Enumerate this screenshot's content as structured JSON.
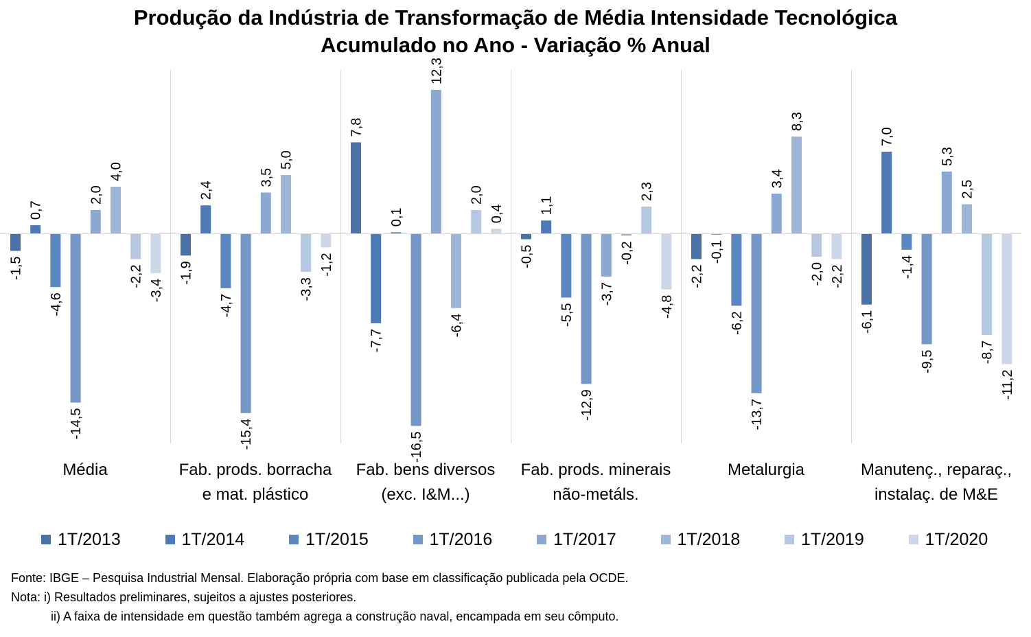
{
  "chart_data": {
    "type": "bar",
    "title": "Produção da Indústria de Transformação de Média Intensidade Tecnológica",
    "subtitle": "Acumulado no Ano - Variação % Anual",
    "categories": [
      "Média",
      "Fab. prods. borracha e mat. plástico",
      "Fab. bens diversos (exc. I&M...)",
      "Fab. prods. minerais não-metáls.",
      "Metalurgia",
      "Manutenç., reparaç., instalaç. de M&E"
    ],
    "category_lines": [
      [
        "Média"
      ],
      [
        "Fab. prods. borracha",
        "e mat. plástico"
      ],
      [
        "Fab. bens diversos",
        "(exc. I&M...)"
      ],
      [
        "Fab. prods. minerais",
        "não-metáls."
      ],
      [
        "Metalurgia"
      ],
      [
        "Manutenç., reparaç.,",
        "instalaç. de M&E"
      ]
    ],
    "series": [
      {
        "name": "1T/2013",
        "color": "#4a72a6",
        "values": [
          -1.5,
          -1.9,
          7.8,
          -0.5,
          -2.2,
          -6.1
        ]
      },
      {
        "name": "1T/2014",
        "color": "#4d7ab4",
        "values": [
          0.7,
          2.4,
          -7.7,
          1.1,
          -0.1,
          7.0
        ]
      },
      {
        "name": "1T/2015",
        "color": "#5a87c0",
        "values": [
          -4.6,
          -4.7,
          0.1,
          -5.5,
          -6.2,
          -1.4
        ]
      },
      {
        "name": "1T/2016",
        "color": "#7597c8",
        "values": [
          -14.5,
          -15.4,
          -16.5,
          -12.9,
          -13.7,
          -9.5
        ]
      },
      {
        "name": "1T/2017",
        "color": "#8da8d0",
        "values": [
          2.0,
          3.5,
          12.3,
          -3.7,
          3.4,
          5.3
        ]
      },
      {
        "name": "1T/2018",
        "color": "#a0b6d8",
        "values": [
          4.0,
          5.0,
          -6.4,
          -0.2,
          8.3,
          2.5
        ]
      },
      {
        "name": "1T/2019",
        "color": "#b6c7e1",
        "values": [
          -2.2,
          -3.3,
          2.0,
          2.3,
          -2.0,
          -8.7
        ]
      },
      {
        "name": "1T/2020",
        "color": "#ccd8ea",
        "values": [
          -3.4,
          -1.2,
          0.4,
          -4.8,
          -2.2,
          -11.2
        ]
      }
    ],
    "data_labels": [
      [
        "-1,5",
        "0,7",
        "-4,6",
        "-14,5",
        "2,0",
        "4,0",
        "-2,2",
        "-3,4"
      ],
      [
        "-1,9",
        "2,4",
        "-4,7",
        "-15,4",
        "3,5",
        "5,0",
        "-3,3",
        "-1,2"
      ],
      [
        "7,8",
        "-7,7",
        "0,1",
        "-16,5",
        "12,3",
        "-6,4",
        "2,0",
        "0,4"
      ],
      [
        "-0,5",
        "1,1",
        "-5,5",
        "-12,9",
        "-3,7",
        "-0,2",
        "2,3",
        "-4,8"
      ],
      [
        "-2,2",
        "-0,1",
        "-6,2",
        "-13,7",
        "3,4",
        "8,3",
        "-2,0",
        "-2,2"
      ],
      [
        "-6,1",
        "7,0",
        "-1,4",
        "-9,5",
        "5,3",
        "2,5",
        "-8,7",
        "-11,2"
      ]
    ],
    "ylim": [
      -18,
      14
    ],
    "grid": false,
    "legend_position": "bottom"
  },
  "footnotes": {
    "source": "Fonte: IBGE – Pesquisa Industrial Mensal. Elaboração própria com base em classificação publicada pela OCDE.",
    "note1": "Nota: i) Resultados preliminares, sujeitos a ajustes posteriores.",
    "note2": "ii) A faixa de intensidade em questão também agrega a construção naval, encampada em seu cômputo."
  }
}
